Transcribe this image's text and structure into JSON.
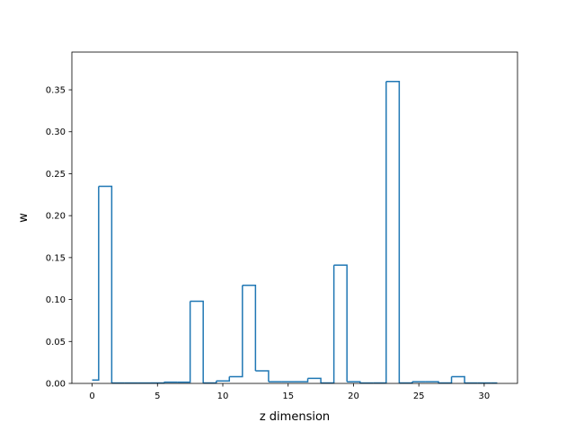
{
  "chart_data": {
    "type": "step",
    "title": "",
    "xlabel": "z dimension",
    "ylabel": "w",
    "xlim": [
      -1.55,
      32.55
    ],
    "ylim": [
      0,
      0.395
    ],
    "xticks": [
      0,
      5,
      10,
      15,
      20,
      25,
      30
    ],
    "xtick_labels": [
      "0",
      "5",
      "10",
      "15",
      "20",
      "25",
      "30"
    ],
    "yticks": [
      0.0,
      0.05,
      0.1,
      0.15,
      0.2,
      0.25,
      0.3,
      0.35
    ],
    "ytick_labels": [
      "0.00",
      "0.05",
      "0.10",
      "0.15",
      "0.20",
      "0.25",
      "0.30",
      "0.35"
    ],
    "grid": false,
    "line_color": "#1f77b4",
    "x": [
      0,
      1,
      2,
      3,
      4,
      5,
      6,
      7,
      8,
      9,
      10,
      11,
      12,
      13,
      14,
      15,
      16,
      17,
      18,
      19,
      20,
      21,
      22,
      23,
      24,
      25,
      26,
      27,
      28,
      29,
      30,
      31
    ],
    "values": [
      0.004,
      0.235,
      0.0005,
      0.0005,
      0.0005,
      0.0005,
      0.0015,
      0.0015,
      0.098,
      0.0005,
      0.003,
      0.008,
      0.117,
      0.015,
      0.002,
      0.002,
      0.002,
      0.006,
      0.0005,
      0.141,
      0.002,
      0.0005,
      0.0005,
      0.36,
      0.0005,
      0.002,
      0.002,
      0.0005,
      0.008,
      0.0005,
      0.0005,
      0.0005
    ]
  }
}
